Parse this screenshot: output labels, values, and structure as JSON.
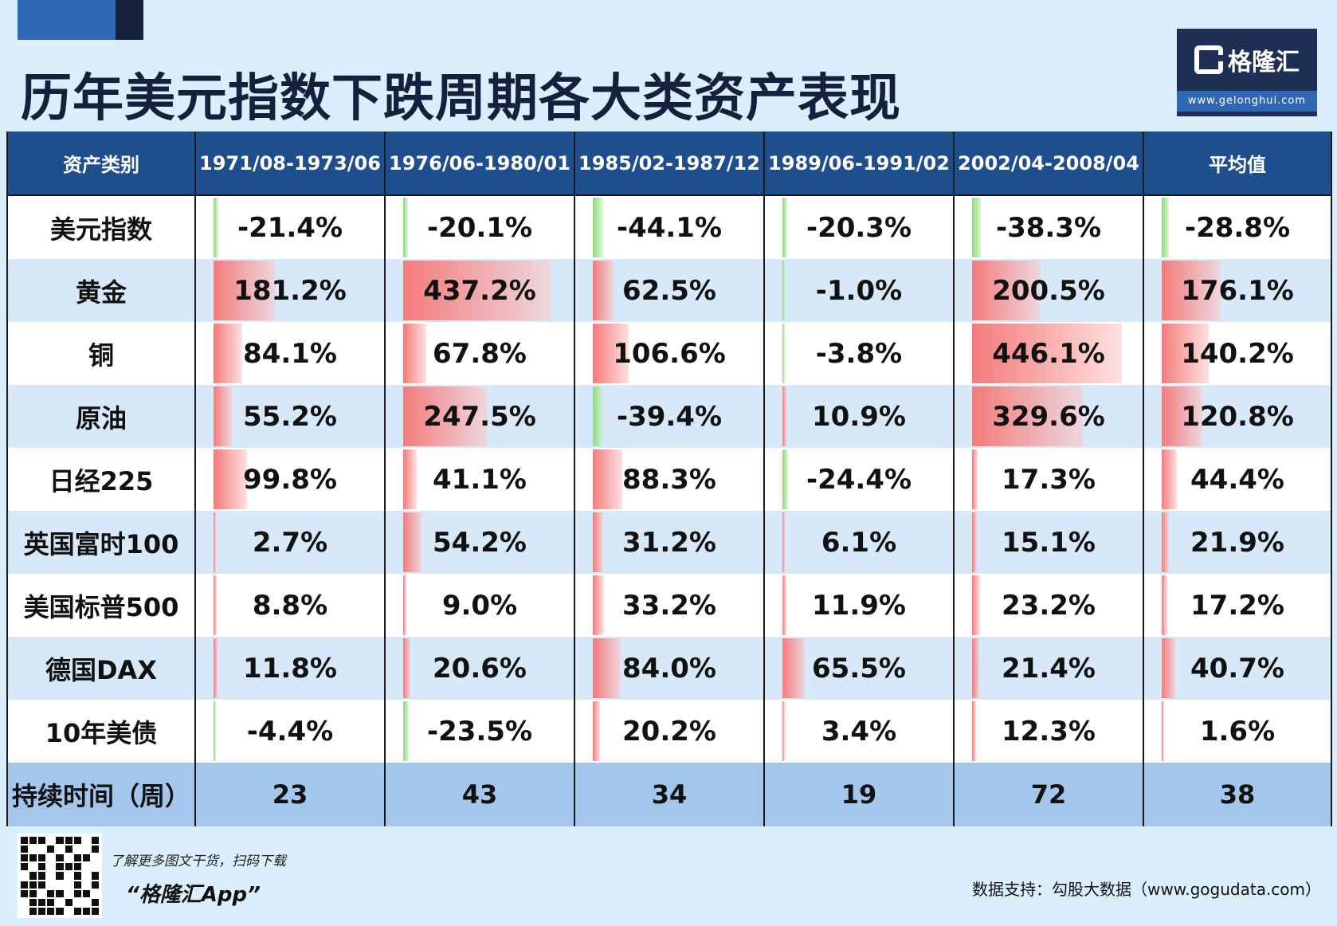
{
  "title": "历年美元指数下跌周期各大类资产表现",
  "logo": {
    "name": "格隆汇",
    "url": "www.gelonghui.com"
  },
  "columns": [
    "资产类别",
    "1971/08-1973/06",
    "1976/06-1980/01",
    "1985/02-1987/12",
    "1989/06-1991/02",
    "2002/04-2008/04",
    "平均值"
  ],
  "chart_data": {
    "type": "table",
    "title": "历年美元指数下跌周期各大类资产表现",
    "unit": "%",
    "periods": [
      "1971/08-1973/06",
      "1976/06-1980/01",
      "1985/02-1987/12",
      "1989/06-1991/02",
      "2002/04-2008/04",
      "平均值"
    ],
    "rows": [
      {
        "asset": "美元指数",
        "values": [
          -21.4,
          -20.1,
          -44.1,
          -20.3,
          -38.3,
          -28.8
        ],
        "display": [
          "-21.4%",
          "-20.1%",
          "-44.1%",
          "-20.3%",
          "-38.3%",
          "-28.8%"
        ]
      },
      {
        "asset": "黄金",
        "values": [
          181.2,
          437.2,
          62.5,
          -1.0,
          200.5,
          176.1
        ],
        "display": [
          "181.2%",
          "437.2%",
          "62.5%",
          "-1.0%",
          "200.5%",
          "176.1%"
        ]
      },
      {
        "asset": "铜",
        "values": [
          84.1,
          67.8,
          106.6,
          -3.8,
          446.1,
          140.2
        ],
        "display": [
          "84.1%",
          "67.8%",
          "106.6%",
          "-3.8%",
          "446.1%",
          "140.2%"
        ]
      },
      {
        "asset": "原油",
        "values": [
          55.2,
          247.5,
          -39.4,
          10.9,
          329.6,
          120.8
        ],
        "display": [
          "55.2%",
          "247.5%",
          "-39.4%",
          "10.9%",
          "329.6%",
          "120.8%"
        ]
      },
      {
        "asset": "日经225",
        "values": [
          99.8,
          41.1,
          88.3,
          -24.4,
          17.3,
          44.4
        ],
        "display": [
          "99.8%",
          "41.1%",
          "88.3%",
          "-24.4%",
          "17.3%",
          "44.4%"
        ]
      },
      {
        "asset": "英国富时100",
        "values": [
          2.7,
          54.2,
          31.2,
          6.1,
          15.1,
          21.9
        ],
        "display": [
          "2.7%",
          "54.2%",
          "31.2%",
          "6.1%",
          "15.1%",
          "21.9%"
        ]
      },
      {
        "asset": "美国标普500",
        "values": [
          8.8,
          9.0,
          33.2,
          11.9,
          23.2,
          17.2
        ],
        "display": [
          "8.8%",
          "9.0%",
          "33.2%",
          "11.9%",
          "23.2%",
          "17.2%"
        ]
      },
      {
        "asset": "德国DAX",
        "values": [
          11.8,
          20.6,
          84.0,
          65.5,
          21.4,
          40.7
        ],
        "display": [
          "11.8%",
          "20.6%",
          "84.0%",
          "65.5%",
          "21.4%",
          "40.7%"
        ]
      },
      {
        "asset": "10年美债",
        "values": [
          -4.4,
          -23.5,
          20.2,
          3.4,
          12.3,
          1.6
        ],
        "display": [
          "-4.4%",
          "-23.5%",
          "20.2%",
          "3.4%",
          "12.3%",
          "1.6%"
        ]
      }
    ],
    "duration": {
      "label": "持续时间（周）",
      "values": [
        "23",
        "43",
        "34",
        "19",
        "72",
        "38"
      ]
    },
    "bar_colors": {
      "positive": "#f47b7b",
      "negative": "#8fd97f"
    }
  },
  "footer": {
    "line1": "了解更多图文干货，扫码下载",
    "line2": "“格隆汇App”",
    "source": "数据支持：勾股大数据（www.gogudata.com）"
  }
}
